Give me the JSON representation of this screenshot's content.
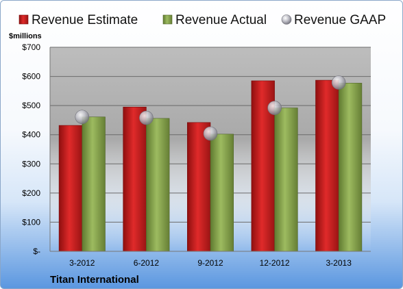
{
  "chart_data": {
    "type": "bar",
    "company": "Titan International",
    "unit_label": "$millions",
    "categories": [
      "3-2012",
      "6-2012",
      "9-2012",
      "12-2012",
      "3-2013"
    ],
    "series": [
      {
        "name": "Revenue Estimate",
        "kind": "bar",
        "color": "#d42020",
        "values": [
          432,
          495,
          442,
          585,
          587
        ]
      },
      {
        "name": "Revenue Actual",
        "kind": "bar",
        "color": "#8eab52",
        "values": [
          461,
          456,
          402,
          492,
          577
        ]
      },
      {
        "name": "Revenue GAAP",
        "kind": "marker",
        "color": "#b8b8c0",
        "values": [
          461,
          458,
          404,
          492,
          579
        ]
      }
    ],
    "ylim": [
      0,
      700
    ],
    "yticks": [
      0,
      100,
      200,
      300,
      400,
      500,
      600,
      700
    ],
    "ytick_labels": [
      "$-",
      "$100",
      "$200",
      "$300",
      "$400",
      "$500",
      "$600",
      "$700"
    ],
    "grid": true,
    "legend": "top"
  }
}
